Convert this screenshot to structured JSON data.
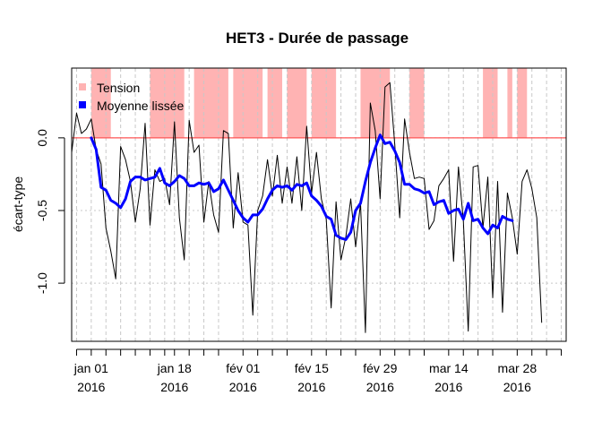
{
  "chart_data": {
    "type": "line",
    "title": "HET3 - Durée de passage",
    "xlabel": "",
    "ylabel": "écart-type",
    "ylim": [
      -1.4,
      0.48
    ],
    "yticks": [
      -1.0,
      -0.5,
      0.0
    ],
    "ytick_labels": [
      "-1.0",
      "-0.5",
      "0.0"
    ],
    "x_start_date": "2015-12-28",
    "x_end_date": "2016-04-07",
    "xticks": [
      {
        "date": "2015-12-29",
        "line1": "",
        "line2": ""
      },
      {
        "date": "2016-01-01",
        "line1": "jan 01",
        "line2": "2016"
      },
      {
        "date": "2016-01-04",
        "line1": "",
        "line2": ""
      },
      {
        "date": "2016-01-07",
        "line1": "",
        "line2": ""
      },
      {
        "date": "2016-01-10",
        "line1": "",
        "line2": ""
      },
      {
        "date": "2016-01-13",
        "line1": "",
        "line2": ""
      },
      {
        "date": "2016-01-16",
        "line1": "",
        "line2": ""
      },
      {
        "date": "2016-01-18",
        "line1": "jan 18",
        "line2": "2016"
      },
      {
        "date": "2016-01-21",
        "line1": "",
        "line2": ""
      },
      {
        "date": "2016-01-24",
        "line1": "",
        "line2": ""
      },
      {
        "date": "2016-01-27",
        "line1": "",
        "line2": ""
      },
      {
        "date": "2016-02-01",
        "line1": "fév 01",
        "line2": "2016"
      },
      {
        "date": "2016-02-04",
        "line1": "",
        "line2": ""
      },
      {
        "date": "2016-02-07",
        "line1": "",
        "line2": ""
      },
      {
        "date": "2016-02-10",
        "line1": "",
        "line2": ""
      },
      {
        "date": "2016-02-15",
        "line1": "fév 15",
        "line2": "2016"
      },
      {
        "date": "2016-02-18",
        "line1": "",
        "line2": ""
      },
      {
        "date": "2016-02-21",
        "line1": "",
        "line2": ""
      },
      {
        "date": "2016-02-24",
        "line1": "",
        "line2": ""
      },
      {
        "date": "2016-02-29",
        "line1": "fév 29",
        "line2": "2016"
      },
      {
        "date": "2016-03-03",
        "line1": "",
        "line2": ""
      },
      {
        "date": "2016-03-06",
        "line1": "",
        "line2": ""
      },
      {
        "date": "2016-03-09",
        "line1": "",
        "line2": ""
      },
      {
        "date": "2016-03-14",
        "line1": "mar 14",
        "line2": "2016"
      },
      {
        "date": "2016-03-17",
        "line1": "",
        "line2": ""
      },
      {
        "date": "2016-03-20",
        "line1": "",
        "line2": ""
      },
      {
        "date": "2016-03-23",
        "line1": "",
        "line2": ""
      },
      {
        "date": "2016-03-28",
        "line1": "mar 28",
        "line2": "2016"
      },
      {
        "date": "2016-03-31",
        "line1": "",
        "line2": ""
      },
      {
        "date": "2016-04-03",
        "line1": "",
        "line2": ""
      },
      {
        "date": "2016-04-06",
        "line1": "",
        "line2": ""
      }
    ],
    "reference_line": {
      "y": 0.0,
      "color": "#ff5555"
    },
    "tension_periods": [
      [
        "2016-01-01",
        "2016-01-05"
      ],
      [
        "2016-01-13",
        "2016-01-20"
      ],
      [
        "2016-01-22",
        "2016-01-29"
      ],
      [
        "2016-01-30",
        "2016-02-05"
      ],
      [
        "2016-02-06",
        "2016-02-09"
      ],
      [
        "2016-02-10",
        "2016-02-14"
      ],
      [
        "2016-02-15",
        "2016-02-20"
      ],
      [
        "2016-02-25",
        "2016-03-02"
      ],
      [
        "2016-03-06",
        "2016-03-09"
      ],
      [
        "2016-03-21",
        "2016-03-24"
      ],
      [
        "2016-03-26",
        "2016-03-27"
      ],
      [
        "2016-03-28",
        "2016-03-30"
      ]
    ],
    "series": [
      {
        "name": "",
        "color": "#000000",
        "line_width": 1,
        "points": [
          [
            "2015-12-28",
            -0.1
          ],
          [
            "2015-12-29",
            0.17
          ],
          [
            "2015-12-30",
            0.03
          ],
          [
            "2015-12-31",
            0.06
          ],
          [
            "2016-01-01",
            0.13
          ],
          [
            "2016-01-02",
            -0.08
          ],
          [
            "2016-01-03",
            -0.18
          ],
          [
            "2016-01-04",
            -0.62
          ],
          [
            "2016-01-05",
            -0.78
          ],
          [
            "2016-01-06",
            -0.97
          ],
          [
            "2016-01-07",
            -0.06
          ],
          [
            "2016-01-08",
            -0.15
          ],
          [
            "2016-01-09",
            -0.3
          ],
          [
            "2016-01-10",
            -0.58
          ],
          [
            "2016-01-11",
            -0.35
          ],
          [
            "2016-01-12",
            0.1
          ],
          [
            "2016-01-13",
            -0.6
          ],
          [
            "2016-01-14",
            -0.22
          ],
          [
            "2016-01-15",
            -0.3
          ],
          [
            "2016-01-16",
            -0.28
          ],
          [
            "2016-01-17",
            -0.46
          ],
          [
            "2016-01-18",
            0.11
          ],
          [
            "2016-01-19",
            -0.55
          ],
          [
            "2016-01-20",
            -0.84
          ],
          [
            "2016-01-21",
            0.12
          ],
          [
            "2016-01-22",
            -0.1
          ],
          [
            "2016-01-23",
            -0.05
          ],
          [
            "2016-01-24",
            -0.58
          ],
          [
            "2016-01-25",
            -0.3
          ],
          [
            "2016-01-26",
            -0.53
          ],
          [
            "2016-01-27",
            -0.65
          ],
          [
            "2016-01-28",
            0.05
          ],
          [
            "2016-01-29",
            0.03
          ],
          [
            "2016-01-30",
            -0.62
          ],
          [
            "2016-01-31",
            -0.24
          ],
          [
            "2016-02-01",
            -0.58
          ],
          [
            "2016-02-02",
            -0.6
          ],
          [
            "2016-02-03",
            -1.22
          ],
          [
            "2016-02-04",
            -0.5
          ],
          [
            "2016-02-05",
            -0.4
          ],
          [
            "2016-02-06",
            -0.15
          ],
          [
            "2016-02-07",
            -0.4
          ],
          [
            "2016-02-08",
            -0.12
          ],
          [
            "2016-02-09",
            -0.45
          ],
          [
            "2016-02-10",
            -0.2
          ],
          [
            "2016-02-11",
            -0.45
          ],
          [
            "2016-02-12",
            -0.13
          ],
          [
            "2016-02-13",
            -0.5
          ],
          [
            "2016-02-14",
            0.08
          ],
          [
            "2016-02-15",
            -0.38
          ],
          [
            "2016-02-16",
            -0.1
          ],
          [
            "2016-02-17",
            -0.42
          ],
          [
            "2016-02-18",
            -0.56
          ],
          [
            "2016-02-19",
            -1.17
          ],
          [
            "2016-02-20",
            -0.44
          ],
          [
            "2016-02-21",
            -0.84
          ],
          [
            "2016-02-22",
            -0.68
          ],
          [
            "2016-02-23",
            -0.42
          ],
          [
            "2016-02-24",
            -0.75
          ],
          [
            "2016-02-25",
            -0.45
          ],
          [
            "2016-02-26",
            -1.34
          ],
          [
            "2016-02-27",
            0.24
          ],
          [
            "2016-02-28",
            0.05
          ],
          [
            "2016-02-29",
            -0.42
          ],
          [
            "2016-03-01",
            0.35
          ],
          [
            "2016-03-02",
            0.38
          ],
          [
            "2016-03-03",
            -0.05
          ],
          [
            "2016-03-04",
            -0.55
          ],
          [
            "2016-03-05",
            0.13
          ],
          [
            "2016-03-06",
            -0.1
          ],
          [
            "2016-03-07",
            -0.28
          ],
          [
            "2016-03-08",
            -0.27
          ],
          [
            "2016-03-09",
            -0.28
          ],
          [
            "2016-03-10",
            -0.63
          ],
          [
            "2016-03-11",
            -0.57
          ],
          [
            "2016-03-12",
            -0.33
          ],
          [
            "2016-03-13",
            -0.28
          ],
          [
            "2016-03-14",
            -0.22
          ],
          [
            "2016-03-15",
            -0.85
          ],
          [
            "2016-03-16",
            -0.2
          ],
          [
            "2016-03-17",
            -0.57
          ],
          [
            "2016-03-18",
            -1.33
          ],
          [
            "2016-03-19",
            -0.2
          ],
          [
            "2016-03-20",
            -0.19
          ],
          [
            "2016-03-21",
            -0.62
          ],
          [
            "2016-03-22",
            -0.27
          ],
          [
            "2016-03-23",
            -1.1
          ],
          [
            "2016-03-24",
            -0.3
          ],
          [
            "2016-03-25",
            -1.2
          ],
          [
            "2016-03-26",
            -0.38
          ],
          [
            "2016-03-27",
            -0.55
          ],
          [
            "2016-03-28",
            -0.8
          ],
          [
            "2016-03-29",
            -0.3
          ],
          [
            "2016-03-30",
            -0.22
          ],
          [
            "2016-03-31",
            -0.35
          ],
          [
            "2016-04-01",
            -0.55
          ],
          [
            "2016-04-02",
            -1.27
          ]
        ]
      },
      {
        "name": "Moyenne lissée",
        "color": "#0000ff",
        "line_width": 3,
        "points": [
          [
            "2016-01-01",
            0.0
          ],
          [
            "2016-01-02",
            -0.08
          ],
          [
            "2016-01-03",
            -0.34
          ],
          [
            "2016-01-04",
            -0.36
          ],
          [
            "2016-01-05",
            -0.43
          ],
          [
            "2016-01-06",
            -0.45
          ],
          [
            "2016-01-07",
            -0.48
          ],
          [
            "2016-01-08",
            -0.42
          ],
          [
            "2016-01-09",
            -0.3
          ],
          [
            "2016-01-10",
            -0.27
          ],
          [
            "2016-01-11",
            -0.27
          ],
          [
            "2016-01-12",
            -0.29
          ],
          [
            "2016-01-13",
            -0.28
          ],
          [
            "2016-01-14",
            -0.27
          ],
          [
            "2016-01-15",
            -0.21
          ],
          [
            "2016-01-16",
            -0.31
          ],
          [
            "2016-01-17",
            -0.33
          ],
          [
            "2016-01-18",
            -0.3
          ],
          [
            "2016-01-19",
            -0.26
          ],
          [
            "2016-01-20",
            -0.28
          ],
          [
            "2016-01-21",
            -0.33
          ],
          [
            "2016-01-22",
            -0.33
          ],
          [
            "2016-01-23",
            -0.31
          ],
          [
            "2016-01-24",
            -0.32
          ],
          [
            "2016-01-25",
            -0.31
          ],
          [
            "2016-01-26",
            -0.37
          ],
          [
            "2016-01-27",
            -0.35
          ],
          [
            "2016-01-28",
            -0.29
          ],
          [
            "2016-01-29",
            -0.36
          ],
          [
            "2016-01-30",
            -0.43
          ],
          [
            "2016-01-31",
            -0.5
          ],
          [
            "2016-02-01",
            -0.55
          ],
          [
            "2016-02-02",
            -0.58
          ],
          [
            "2016-02-03",
            -0.53
          ],
          [
            "2016-02-04",
            -0.53
          ],
          [
            "2016-02-05",
            -0.49
          ],
          [
            "2016-02-06",
            -0.42
          ],
          [
            "2016-02-07",
            -0.36
          ],
          [
            "2016-02-08",
            -0.33
          ],
          [
            "2016-02-09",
            -0.34
          ],
          [
            "2016-02-10",
            -0.33
          ],
          [
            "2016-02-11",
            -0.36
          ],
          [
            "2016-02-12",
            -0.32
          ],
          [
            "2016-02-13",
            -0.33
          ],
          [
            "2016-02-14",
            -0.31
          ],
          [
            "2016-02-15",
            -0.4
          ],
          [
            "2016-02-16",
            -0.43
          ],
          [
            "2016-02-17",
            -0.47
          ],
          [
            "2016-02-18",
            -0.54
          ],
          [
            "2016-02-19",
            -0.56
          ],
          [
            "2016-02-20",
            -0.67
          ],
          [
            "2016-02-21",
            -0.69
          ],
          [
            "2016-02-22",
            -0.7
          ],
          [
            "2016-02-23",
            -0.65
          ],
          [
            "2016-02-24",
            -0.5
          ],
          [
            "2016-02-25",
            -0.45
          ],
          [
            "2016-02-26",
            -0.3
          ],
          [
            "2016-02-27",
            -0.17
          ],
          [
            "2016-02-28",
            -0.07
          ],
          [
            "2016-02-29",
            0.02
          ],
          [
            "2016-03-01",
            -0.04
          ],
          [
            "2016-03-02",
            -0.03
          ],
          [
            "2016-03-03",
            -0.09
          ],
          [
            "2016-03-04",
            -0.17
          ],
          [
            "2016-03-05",
            -0.32
          ],
          [
            "2016-03-06",
            -0.32
          ],
          [
            "2016-03-07",
            -0.35
          ],
          [
            "2016-03-08",
            -0.36
          ],
          [
            "2016-03-09",
            -0.38
          ],
          [
            "2016-03-10",
            -0.37
          ],
          [
            "2016-03-11",
            -0.46
          ],
          [
            "2016-03-12",
            -0.44
          ],
          [
            "2016-03-13",
            -0.43
          ],
          [
            "2016-03-14",
            -0.52
          ],
          [
            "2016-03-15",
            -0.5
          ],
          [
            "2016-03-16",
            -0.49
          ],
          [
            "2016-03-17",
            -0.56
          ],
          [
            "2016-03-18",
            -0.45
          ],
          [
            "2016-03-19",
            -0.57
          ],
          [
            "2016-03-20",
            -0.56
          ],
          [
            "2016-03-21",
            -0.62
          ],
          [
            "2016-03-22",
            -0.66
          ],
          [
            "2016-03-23",
            -0.6
          ],
          [
            "2016-03-24",
            -0.62
          ],
          [
            "2016-03-25",
            -0.54
          ],
          [
            "2016-03-26",
            -0.56
          ],
          [
            "2016-03-27",
            -0.57
          ]
        ]
      }
    ],
    "legend": {
      "placement": "top-left",
      "entries": [
        {
          "label": "Tension",
          "color": "#ffb3b3"
        },
        {
          "label": "Moyenne lissée",
          "color": "#0000ff"
        }
      ]
    },
    "colors": {
      "tension_fill": "#ffb3b3",
      "smoothed": "#0000ff",
      "raw": "#000000",
      "reference": "#ff5555",
      "grid": "#c8c8c8"
    }
  }
}
